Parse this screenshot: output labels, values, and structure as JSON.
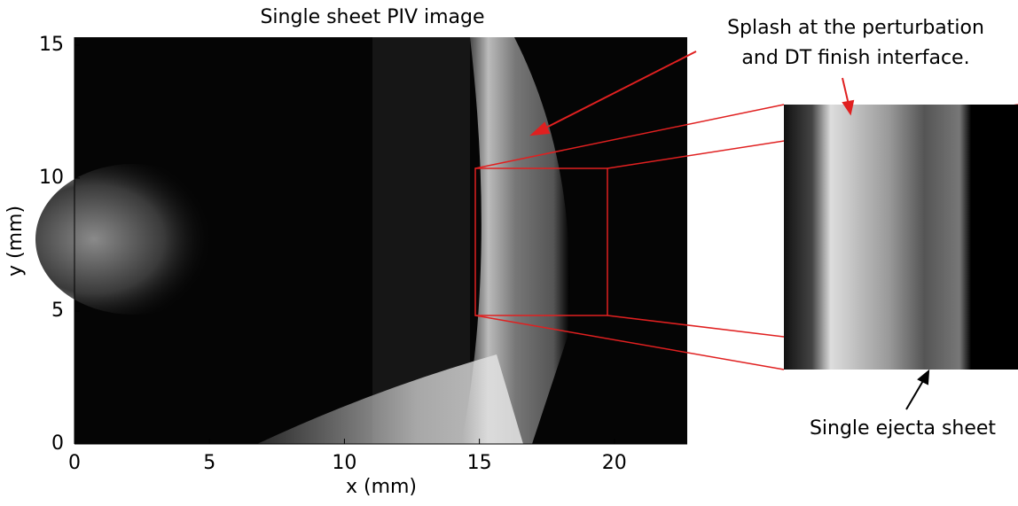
{
  "chart_data": {
    "type": "image",
    "title": "Single sheet PIV image",
    "xlabel": "x (mm)",
    "ylabel": "y (mm)",
    "xlim": [
      0,
      22.7
    ],
    "ylim": [
      0,
      15.3
    ],
    "xticks": [
      0,
      5,
      10,
      15,
      20
    ],
    "yticks": [
      0,
      5,
      10,
      15
    ],
    "annotations": [
      "Splash at the perturbation",
      "and DT finish interface.",
      "Single ejecta sheet"
    ]
  }
}
